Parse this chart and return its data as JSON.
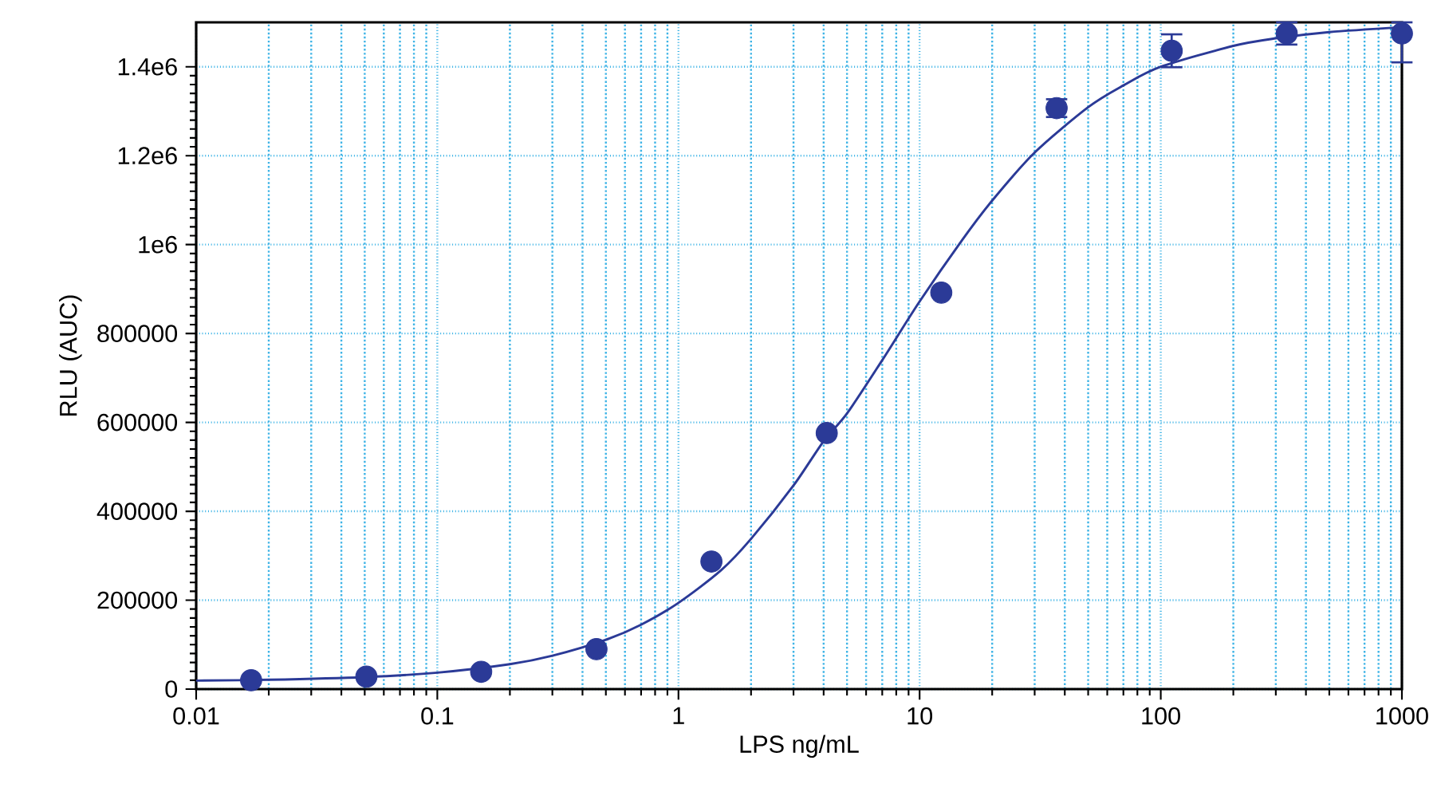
{
  "chart_data": {
    "type": "scatter",
    "xlabel": "LPS ng/mL",
    "ylabel": "RLU (AUC)",
    "log": "x",
    "xlim": [
      0.01,
      1000
    ],
    "ylim": [
      0,
      1500000
    ],
    "xticks": [
      0.01,
      0.1,
      1,
      10,
      100,
      1000
    ],
    "yticks": [
      0,
      200000,
      400000,
      600000,
      800000,
      {
        "value": 1000000,
        "label": "1e6"
      },
      {
        "value": 1200000,
        "label": "1.2e6"
      },
      {
        "value": 1400000,
        "label": "1.4e6"
      }
    ],
    "grid": true,
    "marker": "circle",
    "series": [
      {
        "color": "#2b3a97",
        "x": [
          0.0169,
          0.0508,
          0.152,
          0.457,
          1.37,
          4.12,
          12.3,
          37,
          111,
          333,
          1000
        ],
        "values": [
          20000,
          28000,
          39000,
          90000,
          287000,
          576000,
          892000,
          1307000,
          1436000,
          1475000,
          1475000
        ],
        "errors": [
          null,
          null,
          null,
          null,
          null,
          null,
          null,
          20000,
          37000,
          25000,
          [
            1410000,
            1500000
          ]
        ]
      },
      {
        "type": "line",
        "color": "#2b3a97",
        "marker": "none",
        "x": [
          0.01,
          0.02,
          0.05,
          0.1,
          0.2,
          0.3,
          0.5,
          0.7,
          1,
          1.5,
          2,
          3,
          4,
          5,
          7,
          10,
          15,
          20,
          30,
          50,
          70,
          100,
          200,
          300,
          500,
          1000
        ],
        "values": [
          19000,
          21000,
          27000,
          37000,
          56000,
          75000,
          111000,
          145000,
          194000,
          267000,
          338000,
          458000,
          558000,
          620000,
          740000,
          872000,
          1010000,
          1099000,
          1207000,
          1309000,
          1358000,
          1400000,
          1447000,
          1464000,
          1478000,
          1489000
        ]
      }
    ]
  }
}
